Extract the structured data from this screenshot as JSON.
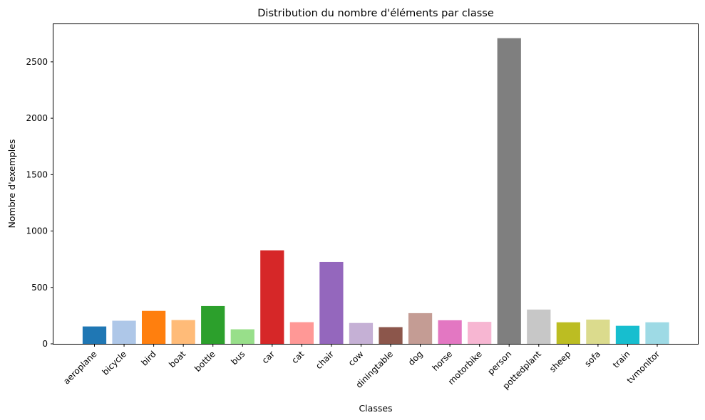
{
  "chart_data": {
    "type": "bar",
    "title": "Distribution du nombre d'éléments par classe",
    "xlabel": "Classes",
    "ylabel": "Nombre d'exemples",
    "ylim": [
      0,
      2840
    ],
    "yticks": [
      0,
      500,
      1000,
      1500,
      2000,
      2500
    ],
    "grid": false,
    "categories": [
      "aeroplane",
      "bicycle",
      "bird",
      "boat",
      "bottle",
      "bus",
      "car",
      "cat",
      "chair",
      "cow",
      "diningtable",
      "dog",
      "horse",
      "motorbike",
      "person",
      "pottedplant",
      "sheep",
      "sofa",
      "train",
      "tvmonitor"
    ],
    "values": [
      154,
      205,
      292,
      211,
      335,
      129,
      829,
      192,
      726,
      185,
      148,
      272,
      209,
      195,
      2710,
      304,
      191,
      215,
      160,
      191
    ],
    "colors": [
      "#1f77b4",
      "#aec7e8",
      "#ff7f0e",
      "#ffbb78",
      "#2ca02c",
      "#98df8a",
      "#d62728",
      "#ff9896",
      "#9467bd",
      "#c5b0d5",
      "#8c564b",
      "#c49c94",
      "#e377c2",
      "#f7b6d2",
      "#7f7f7f",
      "#c7c7c7",
      "#bcbd22",
      "#dbdb8d",
      "#17becf",
      "#9edae5"
    ]
  }
}
